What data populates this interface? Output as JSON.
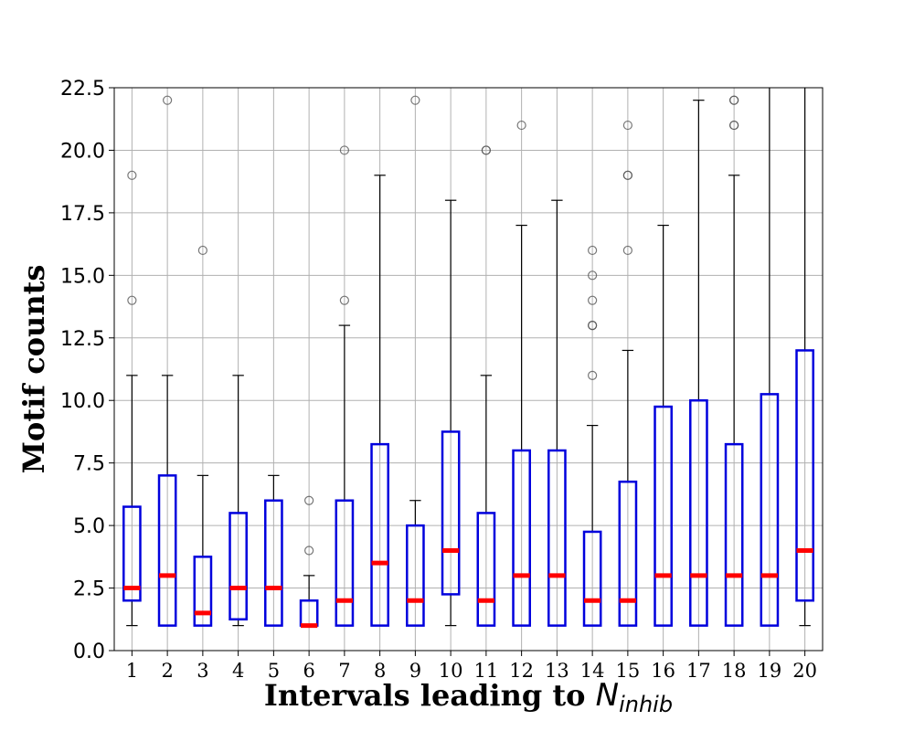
{
  "chart_data": {
    "type": "box",
    "title": "",
    "xlabel": {
      "prefix": "Intervals leading to ",
      "symbol": "N",
      "subscript": "inhib"
    },
    "ylabel": "Motif counts",
    "ylim": [
      0,
      22.5
    ],
    "yticks": [
      "0.0",
      "2.5",
      "5.0",
      "7.5",
      "10.0",
      "12.5",
      "15.0",
      "17.5",
      "20.0",
      "22.5"
    ],
    "grid": true,
    "categories": [
      "1",
      "2",
      "3",
      "4",
      "5",
      "6",
      "7",
      "8",
      "9",
      "10",
      "11",
      "12",
      "13",
      "14",
      "15",
      "16",
      "17",
      "18",
      "19",
      "20"
    ],
    "boxes": [
      {
        "low": 1,
        "q1": 2,
        "median": 2.5,
        "q3": 5.75,
        "high": 11,
        "outliers": [
          14,
          19
        ]
      },
      {
        "low": 1,
        "q1": 1,
        "median": 3,
        "q3": 7,
        "high": 11,
        "outliers": [
          22
        ]
      },
      {
        "low": 1,
        "q1": 1,
        "median": 1.5,
        "q3": 3.75,
        "high": 7,
        "outliers": [
          16
        ]
      },
      {
        "low": 1,
        "q1": 1.25,
        "median": 2.5,
        "q3": 5.5,
        "high": 11,
        "outliers": []
      },
      {
        "low": 1,
        "q1": 1,
        "median": 2.5,
        "q3": 6,
        "high": 7,
        "outliers": []
      },
      {
        "low": 1,
        "q1": 1,
        "median": 1,
        "q3": 2,
        "high": 3,
        "outliers": [
          4,
          6
        ]
      },
      {
        "low": 1,
        "q1": 1,
        "median": 2,
        "q3": 6,
        "high": 13,
        "outliers": [
          14,
          20
        ]
      },
      {
        "low": 1,
        "q1": 1,
        "median": 3.5,
        "q3": 8.25,
        "high": 19,
        "outliers": []
      },
      {
        "low": 1,
        "q1": 1,
        "median": 2,
        "q3": 5,
        "high": 6,
        "outliers": [
          22
        ]
      },
      {
        "low": 1,
        "q1": 2.25,
        "median": 4,
        "q3": 8.75,
        "high": 18,
        "outliers": []
      },
      {
        "low": 1,
        "q1": 1,
        "median": 2,
        "q3": 5.5,
        "high": 11,
        "outliers": [
          20,
          20
        ]
      },
      {
        "low": 1,
        "q1": 1,
        "median": 3,
        "q3": 8,
        "high": 17,
        "outliers": [
          21
        ]
      },
      {
        "low": 1,
        "q1": 1,
        "median": 3,
        "q3": 8,
        "high": 18,
        "outliers": []
      },
      {
        "low": 1,
        "q1": 1,
        "median": 2,
        "q3": 4.75,
        "high": 9,
        "outliers": [
          11,
          13,
          13,
          14,
          15,
          16
        ]
      },
      {
        "low": 1,
        "q1": 1,
        "median": 2,
        "q3": 6.75,
        "high": 12,
        "outliers": [
          16,
          19,
          19,
          21
        ]
      },
      {
        "low": 1,
        "q1": 1,
        "median": 3,
        "q3": 9.75,
        "high": 17,
        "outliers": []
      },
      {
        "low": 1,
        "q1": 1,
        "median": 3,
        "q3": 10,
        "high": 22,
        "outliers": []
      },
      {
        "low": 1,
        "q1": 1,
        "median": 3,
        "q3": 8.25,
        "high": 19,
        "outliers": [
          21,
          21,
          22,
          22
        ]
      },
      {
        "low": 1,
        "q1": 1,
        "median": 3,
        "q3": 10.25,
        "high": 23,
        "outliers": []
      },
      {
        "low": 1,
        "q1": 2,
        "median": 4,
        "q3": 12,
        "high": 23,
        "outliers": []
      }
    ],
    "colors": {
      "box": "#0000dd",
      "median": "#ff0000",
      "whisker": "#000000",
      "outlier": "#555555",
      "grid": "#b0b0b0"
    }
  }
}
